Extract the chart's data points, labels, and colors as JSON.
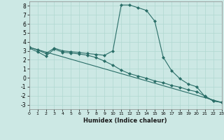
{
  "xlabel": "Humidex (Indice chaleur)",
  "ylabel": "",
  "background_color": "#cce8e4",
  "line_color": "#2a6e68",
  "grid_color": "#b0d8d0",
  "xlim": [
    0,
    23
  ],
  "ylim": [
    -3.5,
    8.5
  ],
  "xticks": [
    0,
    1,
    2,
    3,
    4,
    5,
    6,
    7,
    8,
    9,
    10,
    11,
    12,
    13,
    14,
    15,
    16,
    17,
    18,
    19,
    20,
    21,
    22,
    23
  ],
  "yticks": [
    -3,
    -2,
    -1,
    0,
    1,
    2,
    3,
    4,
    5,
    6,
    7,
    8
  ],
  "series1_x": [
    0,
    1,
    2,
    3,
    4,
    5,
    6,
    7,
    8,
    9,
    10,
    11,
    12,
    13,
    14,
    15,
    16,
    17,
    18,
    19,
    20,
    21,
    22,
    23
  ],
  "series1_y": [
    3.4,
    3.1,
    2.7,
    3.3,
    3.0,
    2.9,
    2.8,
    2.7,
    2.6,
    2.5,
    3.0,
    8.1,
    8.1,
    7.8,
    7.5,
    6.3,
    2.3,
    0.8,
    -0.1,
    -0.7,
    -1.0,
    -2.1,
    -2.6,
    -2.75
  ],
  "series2_x": [
    0,
    1,
    2,
    3,
    4,
    5,
    6,
    7,
    8,
    9,
    10,
    11,
    12,
    13,
    14,
    15,
    16,
    17,
    18,
    19,
    20,
    21,
    22,
    23
  ],
  "series2_y": [
    3.3,
    2.9,
    2.4,
    3.2,
    2.85,
    2.75,
    2.65,
    2.5,
    2.25,
    1.85,
    1.4,
    0.85,
    0.45,
    0.2,
    -0.05,
    -0.35,
    -0.55,
    -0.85,
    -1.05,
    -1.35,
    -1.55,
    -2.05,
    -2.55,
    -2.75
  ],
  "series3_x": [
    0,
    23
  ],
  "series3_y": [
    3.4,
    -2.75
  ],
  "marker": "D",
  "markersize": 2,
  "linewidth": 0.8
}
